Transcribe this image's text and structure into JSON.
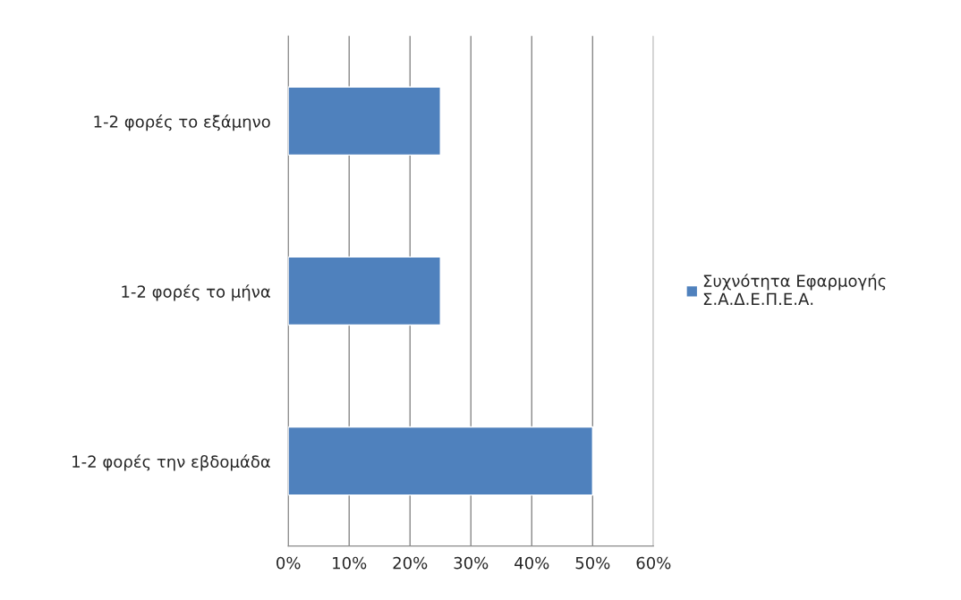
{
  "chart_data": {
    "type": "bar",
    "orientation": "horizontal",
    "categories": [
      "1-2 φορές το εξάμηνο",
      "1-2 φορές το μήνα",
      "1-2 φορές την εβδομάδα"
    ],
    "series": [
      {
        "name": "Συχνότητα Εφαρμογής\nΣ.Α.Δ.Ε.Π.Ε.Α.",
        "color": "#4f81bd",
        "values": [
          25,
          25,
          50
        ]
      }
    ],
    "xlim": [
      0,
      60
    ],
    "xticks": [
      {
        "value": 0,
        "label": "0%"
      },
      {
        "value": 10,
        "label": "10%"
      },
      {
        "value": 20,
        "label": "20%"
      },
      {
        "value": 30,
        "label": "30%"
      },
      {
        "value": 40,
        "label": "40%"
      },
      {
        "value": 50,
        "label": "50%"
      },
      {
        "value": 60,
        "label": "60%"
      }
    ],
    "grid": "x",
    "legend": "right"
  }
}
